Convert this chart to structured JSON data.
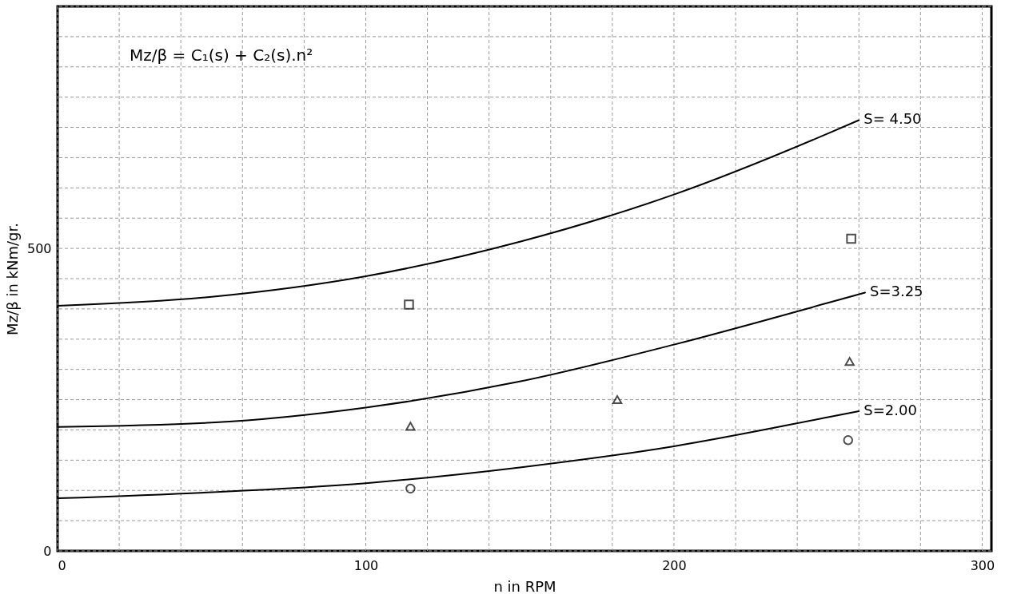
{
  "chart_data": {
    "type": "line",
    "xlabel": "n in RPM",
    "ylabel": "Mz/β in kNm/gr.",
    "annotations": [
      "Mz/β = C₁(s) + C₂(s).n²"
    ],
    "xlim": [
      0,
      303
    ],
    "ylim": [
      0,
      900
    ],
    "xticks": [
      0,
      {
        "value": 20,
        "label": null
      },
      {
        "value": 40,
        "label": null
      },
      {
        "value": 60,
        "label": null
      },
      {
        "value": 80,
        "label": null
      },
      100,
      {
        "value": 120,
        "label": null
      },
      {
        "value": 140,
        "label": null
      },
      {
        "value": 160,
        "label": null
      },
      {
        "value": 180,
        "label": null
      },
      200,
      {
        "value": 220,
        "label": null
      },
      {
        "value": 240,
        "label": null
      },
      {
        "value": 260,
        "label": null
      },
      {
        "value": 280,
        "label": null
      },
      300
    ],
    "yticks": [
      0,
      {
        "value": 50,
        "label": null
      },
      {
        "value": 100,
        "label": null
      },
      {
        "value": 150,
        "label": null
      },
      {
        "value": 200,
        "label": null
      },
      {
        "value": 250,
        "label": null
      },
      {
        "value": 300,
        "label": null
      },
      {
        "value": 350,
        "label": null
      },
      {
        "value": 400,
        "label": null
      },
      {
        "value": 450,
        "label": null
      },
      500,
      {
        "value": 550,
        "label": null
      },
      {
        "value": 600,
        "label": null
      },
      {
        "value": 650,
        "label": null
      },
      {
        "value": 700,
        "label": null
      },
      {
        "value": 750,
        "label": null
      },
      {
        "value": 800,
        "label": null
      },
      {
        "value": 850,
        "label": null
      },
      {
        "value": 900,
        "label": null
      }
    ],
    "grid": true,
    "series": [
      {
        "name": "S= 4.50",
        "color": "#000000",
        "x": [
          0,
          50,
          100,
          150,
          200,
          250,
          260
        ],
        "values": [
          405,
          420,
          454,
          511,
          589,
          690,
          712
        ]
      },
      {
        "name": "S=3.25",
        "color": "#000000",
        "x": [
          0,
          50,
          100,
          150,
          200,
          250,
          262
        ],
        "values": [
          205,
          212,
          237,
          280,
          341,
          410,
          427
        ]
      },
      {
        "name": "S=2.00",
        "color": "#000000",
        "x": [
          0,
          50,
          100,
          150,
          200,
          250,
          260
        ],
        "values": [
          87,
          97,
          112,
          138,
          173,
          221,
          231
        ]
      },
      {
        "type": "scatter",
        "marker": "square",
        "color": "#000000",
        "x": [
          114,
          257.5
        ],
        "values": [
          407,
          516
        ]
      },
      {
        "type": "scatter",
        "marker": "triangle",
        "color": "#000000",
        "x": [
          114.5,
          181.6,
          257
        ],
        "values": [
          206,
          250,
          313
        ]
      },
      {
        "type": "scatter",
        "marker": "circle",
        "color": "#000000",
        "x": [
          114.5,
          256.5
        ],
        "values": [
          103,
          183
        ]
      }
    ]
  }
}
